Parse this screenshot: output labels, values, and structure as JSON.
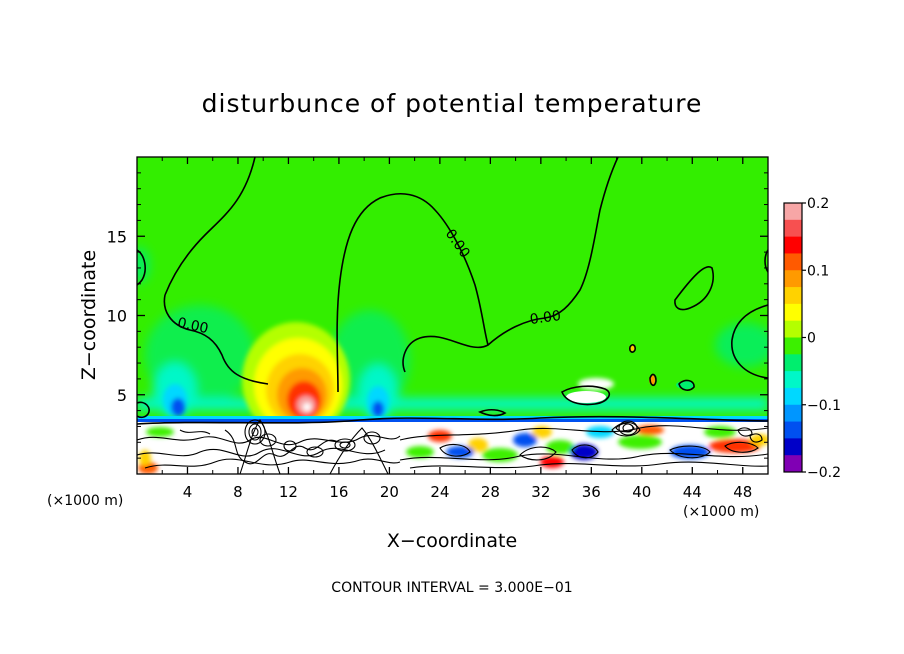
{
  "chart_data": {
    "type": "heatmap",
    "title": "disturbunce of potential temperature",
    "xlabel": "X−coordinate",
    "ylabel": "Z−coordinate",
    "x_unit_left": "(×1000 m)",
    "x_unit_right": "(×1000 m)",
    "footer": "CONTOUR INTERVAL = 3.000E−01",
    "xlim": [
      0,
      50
    ],
    "ylim": [
      0,
      20
    ],
    "xticks": [
      4,
      8,
      12,
      16,
      20,
      24,
      28,
      32,
      36,
      40,
      44,
      48
    ],
    "xtick_labels": [
      "4",
      "8",
      "12",
      "16",
      "20",
      "24",
      "28",
      "32",
      "36",
      "40",
      "44",
      "48"
    ],
    "yticks": [
      5,
      10,
      15
    ],
    "ytick_labels": [
      "5",
      "10",
      "15"
    ],
    "contour_labels": [
      {
        "text": "0.00",
        "x": 3.5,
        "y": 9.5
      },
      {
        "text": "0.00",
        "x": 24.9,
        "y": 14.5
      },
      {
        "text": "0.00",
        "x": 32.1,
        "y": 9.8
      }
    ],
    "colorbar": {
      "min": -0.2,
      "max": 0.2,
      "tick_values": [
        0.2,
        0.1,
        0,
        -0.1,
        -0.2
      ],
      "tick_labels": [
        "0.2",
        "0.1",
        "0",
        "−0.1",
        "−0.2"
      ],
      "colors": [
        "#f7a6a6",
        "#f75050",
        "#ff0000",
        "#ff5a00",
        "#ff9a00",
        "#ffd200",
        "#ffff00",
        "#b4ff00",
        "#3cf000",
        "#00ee6e",
        "#00f7c8",
        "#00d8ff",
        "#0096ff",
        "#0050f0",
        "#0000c8",
        "#8000b4"
      ]
    },
    "hotspots": [
      {
        "name": "warm core",
        "x": 13.5,
        "y": 4.5,
        "value": 0.2
      },
      {
        "name": "cold patch",
        "x": 3.2,
        "y": 4.3,
        "value": -0.1
      },
      {
        "name": "cold patch",
        "x": 19.2,
        "y": 4.3,
        "value": -0.1
      }
    ],
    "background_color": "#33ee00"
  }
}
